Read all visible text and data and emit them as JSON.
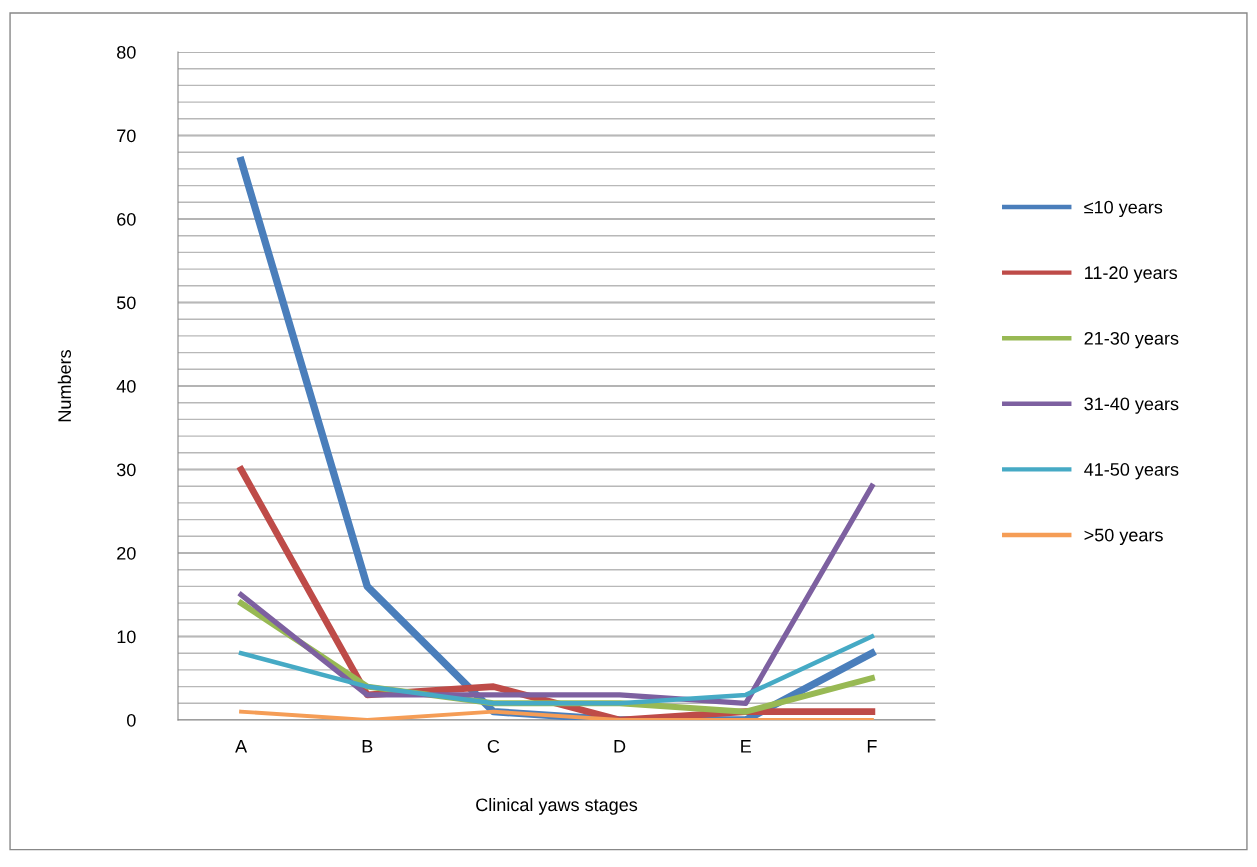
{
  "chart_data": {
    "type": "line",
    "xlabel": "Clinical yaws stages",
    "ylabel": "Numbers",
    "categories": [
      "A",
      "B",
      "C",
      "D",
      "E",
      "F"
    ],
    "series": [
      {
        "name": "≤10 years",
        "color": "#4a7ebb",
        "values": [
          67,
          16,
          1,
          0,
          0,
          8
        ]
      },
      {
        "name": "11-20 years",
        "color": "#be4b48",
        "values": [
          30,
          3,
          4,
          0,
          1,
          1
        ]
      },
      {
        "name": "21-30 years",
        "color": "#98b954",
        "values": [
          14,
          4,
          2,
          2,
          1,
          5
        ]
      },
      {
        "name": "31-40 years",
        "color": "#7d60a0",
        "values": [
          15,
          3,
          3,
          3,
          2,
          28
        ]
      },
      {
        "name": "41-50 years",
        "color": "#46aac5",
        "values": [
          8,
          4,
          2,
          2,
          3,
          10
        ]
      },
      {
        "name": ">50 years",
        "color": "#f59d56",
        "values": [
          1,
          0,
          1,
          0,
          0,
          0
        ]
      }
    ],
    "ylim": [
      0,
      80
    ],
    "yticks": [
      0,
      10,
      20,
      30,
      40,
      50,
      60,
      70,
      80
    ],
    "grid": true,
    "legend": "right",
    "marker": "none",
    "line_style": "solid"
  }
}
